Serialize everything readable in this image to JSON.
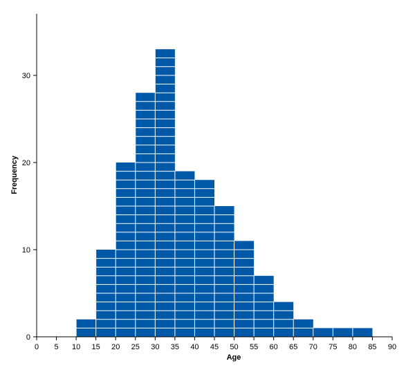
{
  "chart_data": {
    "type": "bar",
    "subtype": "histogram",
    "title": "",
    "xlabel": "Age",
    "ylabel": "Frequency",
    "xlim": [
      0,
      90
    ],
    "ylim": [
      0,
      36
    ],
    "xticks": [
      0,
      5,
      10,
      15,
      20,
      25,
      30,
      35,
      40,
      45,
      50,
      55,
      60,
      65,
      70,
      75,
      80,
      85,
      90
    ],
    "yticks": [
      0,
      10,
      20,
      30
    ],
    "bin_edges": [
      10,
      15,
      20,
      25,
      30,
      35,
      40,
      45,
      50,
      55,
      60,
      65,
      70,
      75,
      80,
      85
    ],
    "values": [
      2,
      10,
      20,
      28,
      33,
      19,
      18,
      15,
      11,
      7,
      4,
      2,
      1,
      1,
      1
    ],
    "bar_color": "#0059a8",
    "grid": false,
    "legend": "none"
  }
}
